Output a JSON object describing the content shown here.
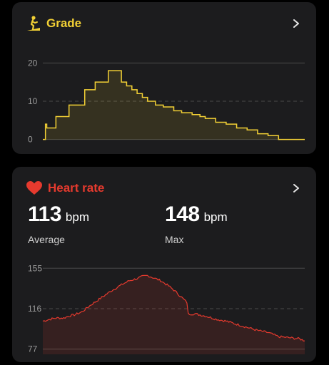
{
  "grade_card": {
    "title": "Grade",
    "icon": "grade-icon",
    "accent_color": "#f2d035",
    "chart_data": {
      "type": "area",
      "title": "",
      "xlabel": "",
      "ylabel": "",
      "y_ticks": [
        "20",
        "10",
        "0"
      ],
      "ylim": [
        -1,
        21
      ],
      "grid": true,
      "x": [
        0,
        1,
        1.5,
        5,
        10,
        16,
        20,
        25,
        26,
        30,
        32,
        34,
        36,
        38,
        40,
        43,
        46,
        50,
        53,
        57,
        60,
        62,
        66,
        70,
        74,
        78,
        82,
        86,
        90,
        94,
        100
      ],
      "values": [
        0,
        4,
        3,
        6,
        9,
        13,
        15,
        18,
        18,
        15,
        14,
        13,
        12,
        11,
        10,
        9,
        8.5,
        7.5,
        7,
        6.5,
        6,
        5.5,
        4.5,
        4,
        3,
        2.5,
        1.5,
        1,
        0,
        0,
        0
      ]
    }
  },
  "heart_card": {
    "title": "Heart rate",
    "icon": "heart-icon",
    "accent_color": "#e63a2e",
    "average_value": "113",
    "average_unit": "bpm",
    "average_label": "Average",
    "max_value": "148",
    "max_unit": "bpm",
    "max_label": "Max",
    "chart_data": {
      "type": "area",
      "title": "",
      "xlabel": "",
      "ylabel": "",
      "y_ticks": [
        "155",
        "116",
        "77"
      ],
      "ylim": [
        72,
        160
      ],
      "grid": true,
      "x": [
        0,
        3,
        5,
        8,
        10,
        12,
        15,
        18,
        22,
        26,
        28,
        30,
        33,
        36,
        38,
        40,
        42,
        45,
        48,
        50,
        53,
        55,
        55.5,
        58,
        62,
        66,
        70,
        74,
        78,
        82,
        86,
        88,
        90,
        94,
        98,
        100
      ],
      "values": [
        104,
        106,
        107,
        107,
        109,
        110,
        113,
        119,
        126,
        133,
        136,
        139,
        143,
        145,
        147,
        148,
        146,
        143,
        138,
        134,
        127,
        122,
        111,
        111,
        109,
        106,
        104,
        101,
        98,
        95,
        93,
        91,
        89,
        88,
        87,
        85
      ]
    }
  }
}
